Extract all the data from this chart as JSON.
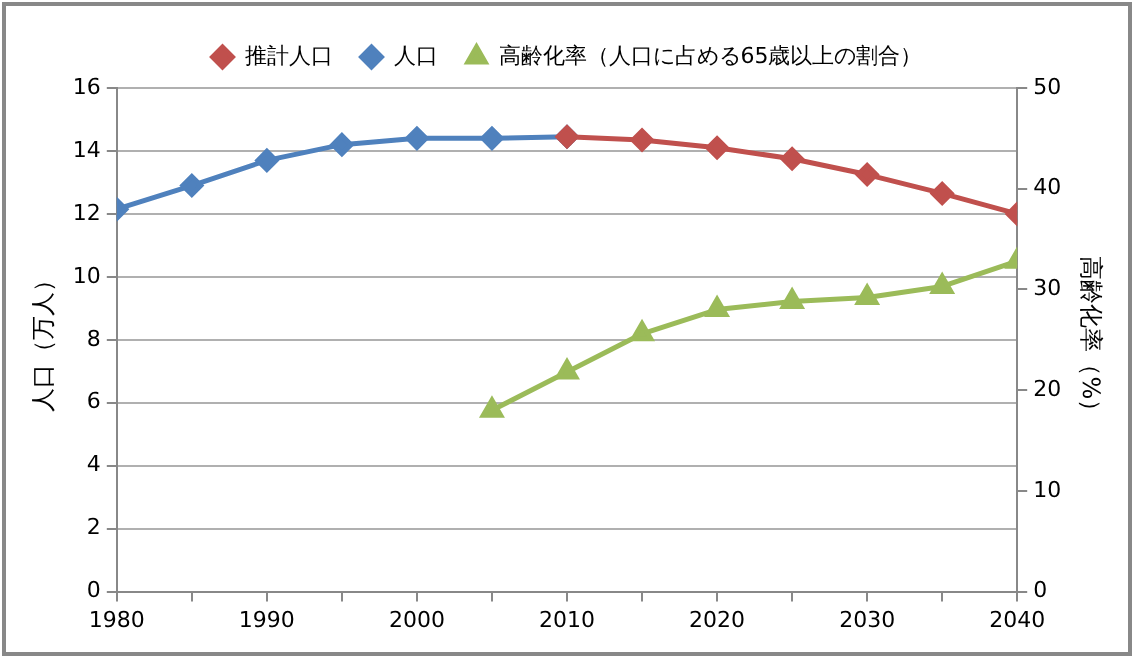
{
  "chart_data": {
    "type": "line",
    "ylabel": "人口（万人）",
    "y2label": "高齢化率（%）",
    "xlim": [
      1980,
      2040
    ],
    "xticks": [
      1980,
      {
        "value": 1985,
        "label": null
      },
      1990,
      {
        "value": 1995,
        "label": null
      },
      2000,
      {
        "value": 2005,
        "label": null
      },
      2010,
      {
        "value": 2015,
        "label": null
      },
      2020,
      {
        "value": 2025,
        "label": null
      },
      2030,
      {
        "value": 2035,
        "label": null
      },
      2040
    ],
    "ylim": [
      0,
      16
    ],
    "yticks": [
      0,
      2,
      4,
      6,
      8,
      10,
      12,
      14,
      16
    ],
    "y2lim": [
      0,
      50
    ],
    "y2ticks": [
      0,
      10,
      20,
      30,
      40,
      50
    ],
    "grid": "y",
    "legend": "top",
    "series": [
      {
        "name": "推計人口",
        "color": "#c0504d",
        "marker": "diamond",
        "x": [
          2010,
          2015,
          2020,
          2025,
          2030,
          2035,
          2040
        ],
        "values": [
          14.45,
          14.35,
          14.1,
          13.75,
          13.25,
          12.65,
          12.0
        ]
      },
      {
        "name": "人口",
        "color": "#4f81bd",
        "marker": "diamond",
        "x": [
          1980,
          1985,
          1990,
          1995,
          2000,
          2005,
          2010
        ],
        "values": [
          12.15,
          12.9,
          13.7,
          14.2,
          14.4,
          14.4,
          14.45
        ]
      },
      {
        "name": "高齢化率（人口に占める65歳以上の割合）",
        "color": "#9bbb59",
        "marker": "triangle",
        "axis": "y2",
        "x": [
          2005,
          2010,
          2015,
          2020,
          2025,
          2030,
          2035,
          2040
        ],
        "values": [
          18.0,
          21.8,
          25.6,
          28.0,
          28.8,
          29.2,
          30.3,
          32.8
        ]
      }
    ]
  }
}
